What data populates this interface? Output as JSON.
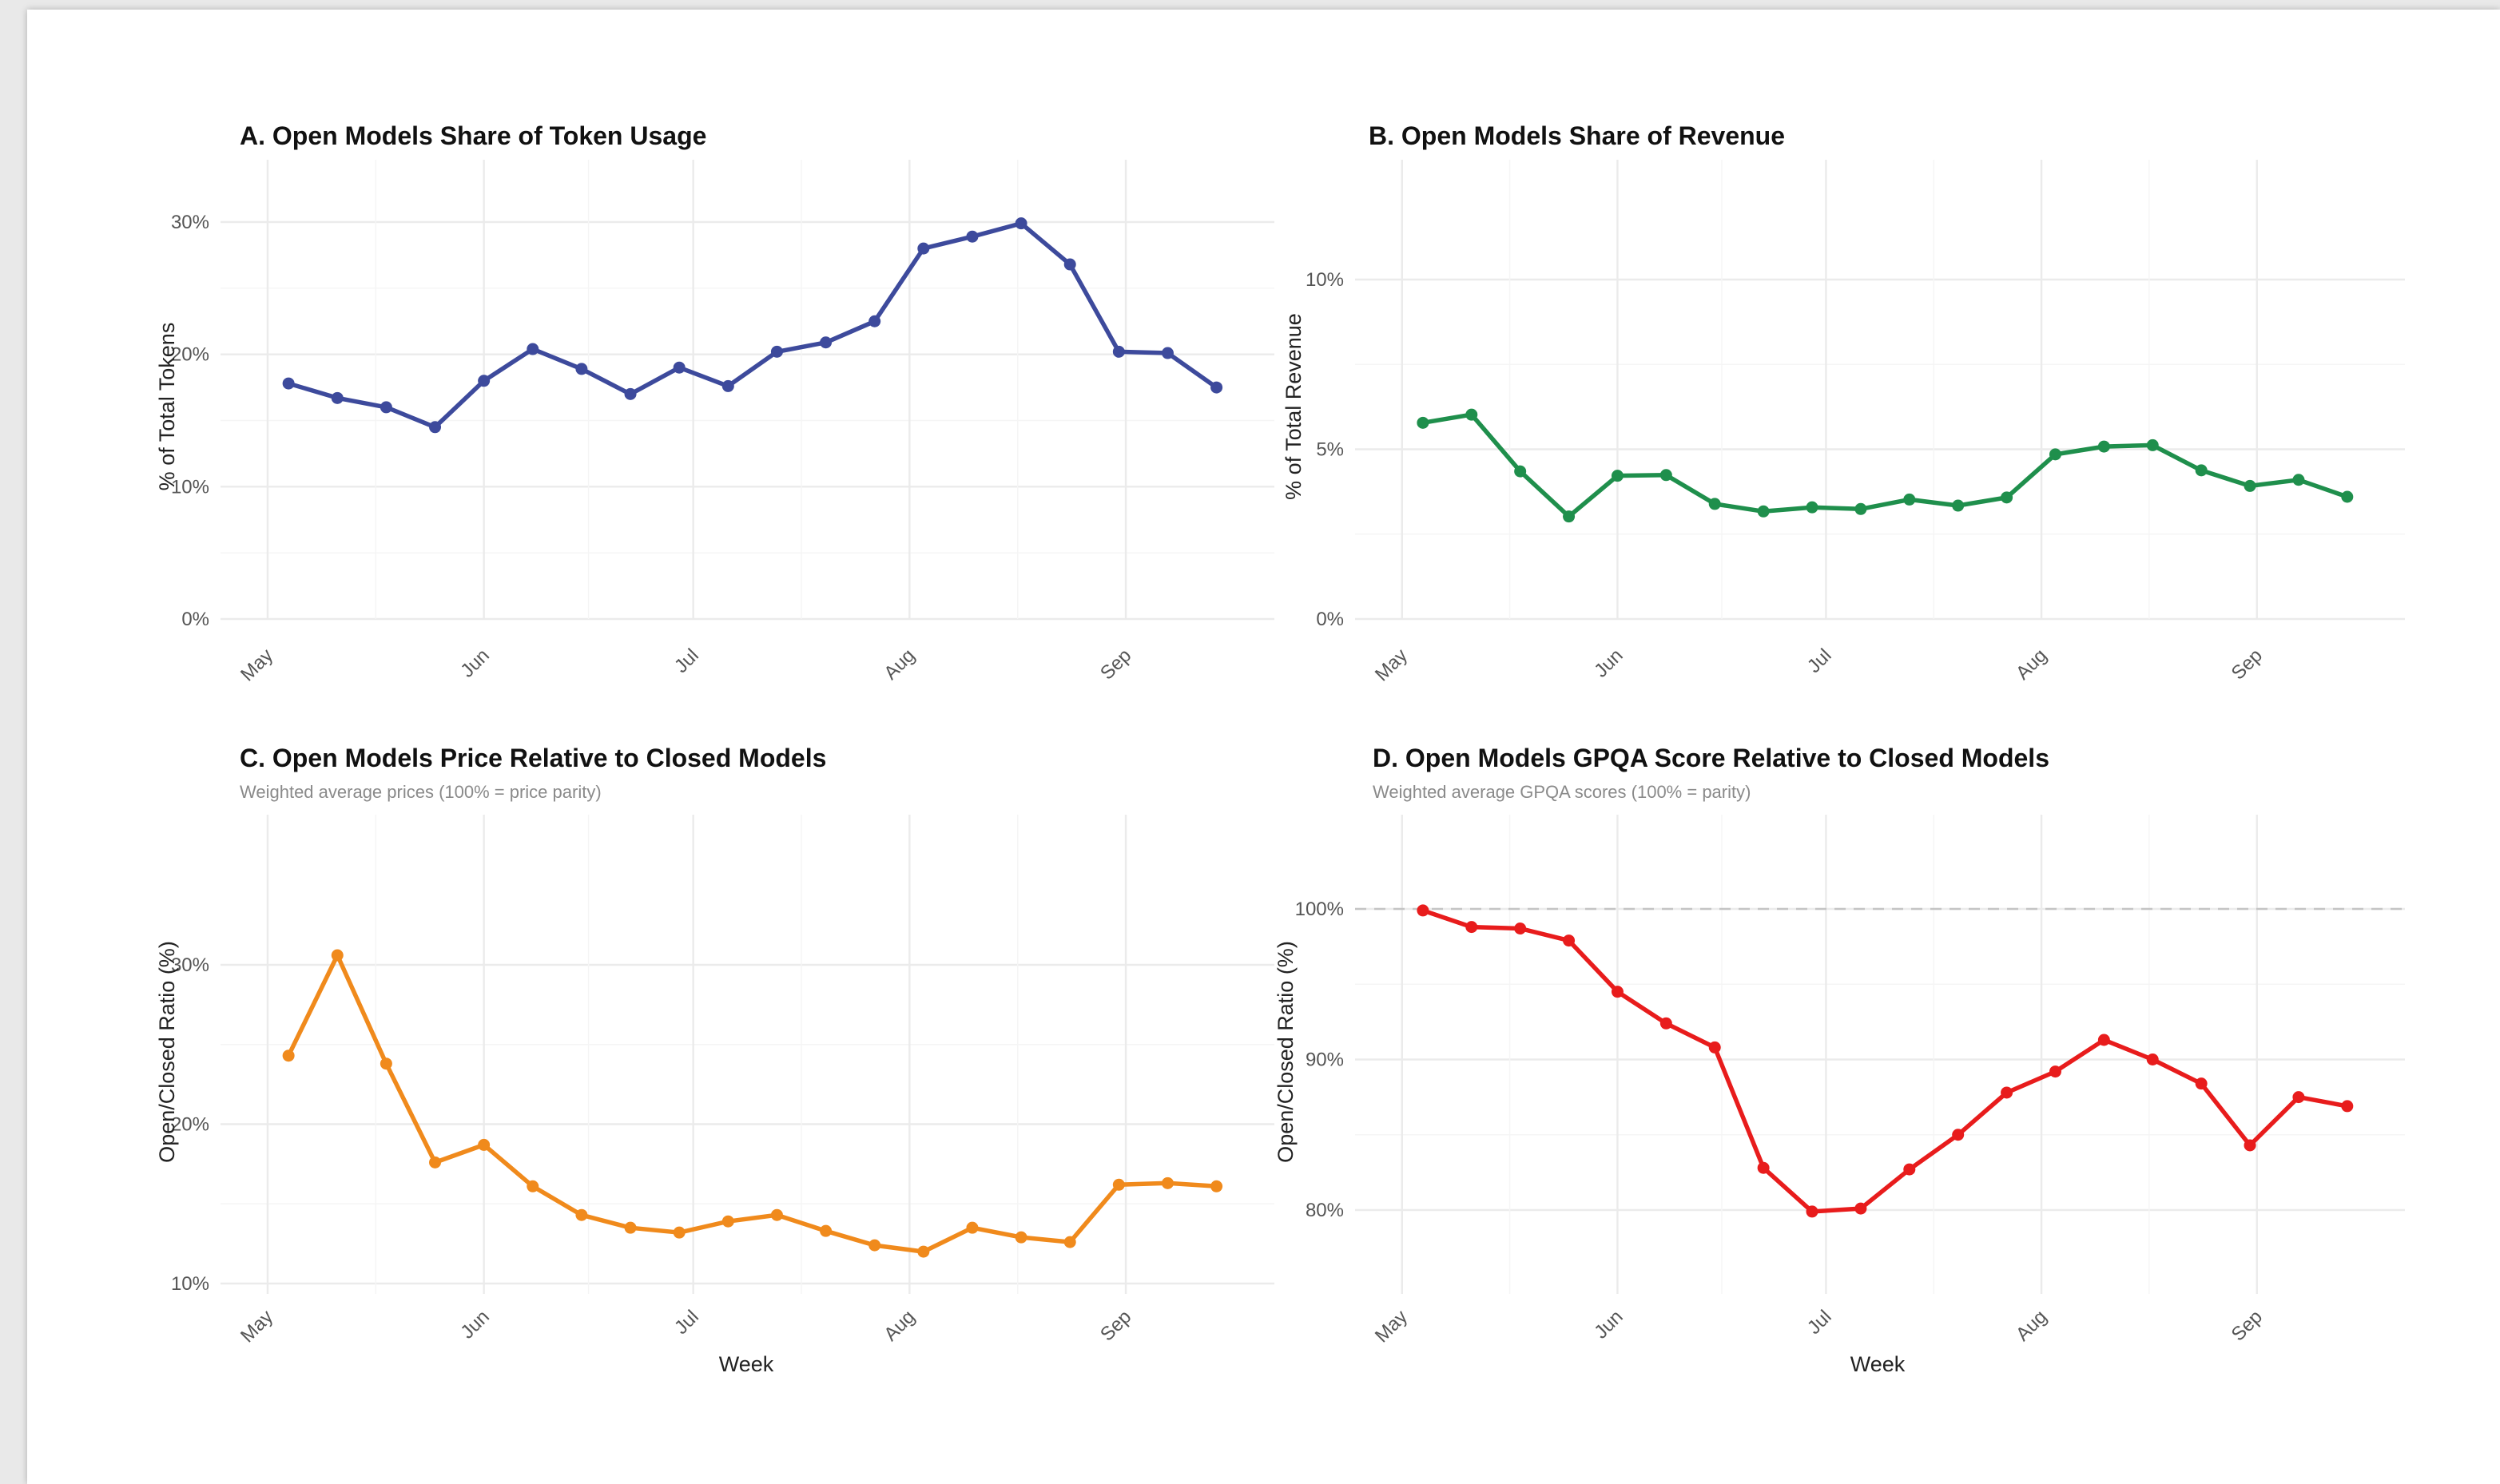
{
  "chart_data": [
    {
      "type": "line",
      "title": "A. Open Models Share of Token Usage",
      "subtitle": "",
      "xlabel": "",
      "ylabel": "% of Total Tokens",
      "x_ticks": [
        "May",
        "Jun",
        "Jul",
        "Aug",
        "Sep"
      ],
      "y_ticks": [
        "0%",
        "10%",
        "20%",
        "30%"
      ],
      "ylim": [
        0,
        30
      ],
      "grid": true,
      "legend": "none",
      "color": "#3d4a9c",
      "series": [
        {
          "x": [
            "2025-05-04",
            "2025-05-11",
            "2025-05-18",
            "2025-05-25",
            "2025-06-01",
            "2025-06-08",
            "2025-06-15",
            "2025-06-22",
            "2025-06-29",
            "2025-07-06",
            "2025-07-13",
            "2025-07-20",
            "2025-07-27",
            "2025-08-03",
            "2025-08-10",
            "2025-08-17",
            "2025-08-24",
            "2025-08-31",
            "2025-09-07",
            "2025-09-14"
          ],
          "values": [
            17.8,
            16.7,
            16.0,
            14.5,
            18.0,
            20.4,
            18.9,
            17.0,
            19.0,
            17.6,
            20.2,
            20.9,
            22.5,
            28.0,
            28.9,
            29.9,
            26.8,
            20.2,
            20.1,
            17.5
          ]
        }
      ]
    },
    {
      "type": "line",
      "title": "B. Open Models Share of Revenue",
      "subtitle": "",
      "xlabel": "",
      "ylabel": "% of Total Revenue",
      "x_ticks": [
        "May",
        "Jun",
        "Jul",
        "Aug",
        "Sep"
      ],
      "y_ticks": [
        "0%",
        "5%",
        "10%"
      ],
      "ylim": [
        0,
        10
      ],
      "grid": true,
      "legend": "none",
      "color": "#1f8f4c",
      "series": [
        {
          "x": [
            "2025-05-04",
            "2025-05-11",
            "2025-05-18",
            "2025-05-25",
            "2025-06-01",
            "2025-06-08",
            "2025-06-15",
            "2025-06-22",
            "2025-06-29",
            "2025-07-06",
            "2025-07-13",
            "2025-07-20",
            "2025-07-27",
            "2025-08-03",
            "2025-08-10",
            "2025-08-17",
            "2025-08-24",
            "2025-08-31",
            "2025-09-07",
            "2025-09-14"
          ],
          "values": [
            5.78,
            6.02,
            4.35,
            3.02,
            4.22,
            4.24,
            3.39,
            3.17,
            3.29,
            3.24,
            3.52,
            3.34,
            3.58,
            4.85,
            5.08,
            5.12,
            4.38,
            3.92,
            4.1,
            3.6
          ]
        }
      ]
    },
    {
      "type": "line",
      "title": "C. Open Models Price Relative to Closed Models",
      "subtitle": "Weighted average prices (100% = price parity)",
      "xlabel": "Week",
      "ylabel": "Open/Closed Ratio (%)",
      "x_ticks": [
        "May",
        "Jun",
        "Jul",
        "Aug",
        "Sep"
      ],
      "y_ticks": [
        "10%",
        "20%",
        "30%"
      ],
      "ylim": [
        10,
        30
      ],
      "grid": true,
      "legend": "none",
      "color": "#f08a1c",
      "series": [
        {
          "x": [
            "2025-05-04",
            "2025-05-11",
            "2025-05-18",
            "2025-05-25",
            "2025-06-01",
            "2025-06-08",
            "2025-06-15",
            "2025-06-22",
            "2025-06-29",
            "2025-07-06",
            "2025-07-13",
            "2025-07-20",
            "2025-07-27",
            "2025-08-03",
            "2025-08-10",
            "2025-08-17",
            "2025-08-24",
            "2025-08-31",
            "2025-09-07",
            "2025-09-14"
          ],
          "values": [
            24.3,
            30.6,
            23.8,
            17.6,
            18.7,
            16.1,
            14.3,
            13.5,
            13.2,
            13.9,
            14.3,
            13.3,
            12.4,
            12.0,
            13.5,
            12.9,
            12.6,
            16.2,
            16.3,
            16.1
          ]
        }
      ]
    },
    {
      "type": "line",
      "title": "D. Open Models GPQA Score Relative to Closed Models",
      "subtitle": "Weighted average GPQA scores (100% = parity)",
      "xlabel": "Week",
      "ylabel": "Open/Closed Ratio (%)",
      "x_ticks": [
        "May",
        "Jun",
        "Jul",
        "Aug",
        "Sep"
      ],
      "y_ticks": [
        "80%",
        "90%",
        "100%"
      ],
      "ylim": [
        80,
        100
      ],
      "grid": true,
      "legend": "none",
      "reference_line": 100,
      "color": "#e81c1c",
      "series": [
        {
          "x": [
            "2025-05-04",
            "2025-05-11",
            "2025-05-18",
            "2025-05-25",
            "2025-06-01",
            "2025-06-08",
            "2025-06-15",
            "2025-06-22",
            "2025-06-29",
            "2025-07-06",
            "2025-07-13",
            "2025-07-20",
            "2025-07-27",
            "2025-08-03",
            "2025-08-10",
            "2025-08-17",
            "2025-08-24",
            "2025-08-31",
            "2025-09-07",
            "2025-09-14"
          ],
          "values": [
            99.9,
            98.8,
            98.7,
            97.9,
            94.5,
            92.4,
            90.8,
            82.8,
            79.9,
            80.1,
            82.7,
            85.0,
            87.8,
            89.2,
            91.3,
            90.0,
            88.4,
            84.3,
            87.5,
            86.9
          ]
        }
      ]
    }
  ]
}
